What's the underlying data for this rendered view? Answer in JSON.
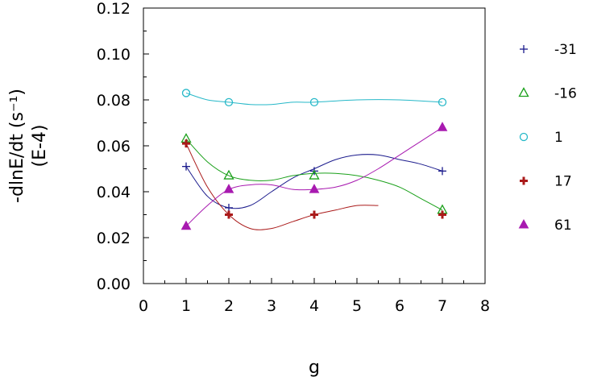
{
  "chart_data": {
    "type": "scatter",
    "title": "",
    "xlabel": "g",
    "ylabel": "-dlnE/dt  (s⁻¹)",
    "ylabel_sub": "(E-4)",
    "xlim": [
      0,
      8
    ],
    "ylim": [
      0,
      0.12
    ],
    "x_ticks": [
      "0",
      "1",
      "2",
      "3",
      "4",
      "5",
      "6",
      "7",
      "8"
    ],
    "y_ticks": [
      "0.00",
      "0.02",
      "0.04",
      "0.06",
      "0.08",
      "0.10",
      "0.12"
    ],
    "grid": false,
    "legend_position": "right",
    "series": [
      {
        "name": "-31",
        "marker": "plus",
        "color": "#1a1a8c",
        "points": [
          [
            1,
            0.051
          ],
          [
            2,
            0.033
          ],
          [
            4,
            0.049
          ],
          [
            7,
            0.049
          ]
        ],
        "curve": [
          [
            1,
            0.051
          ],
          [
            1.5,
            0.038
          ],
          [
            2,
            0.033
          ],
          [
            2.5,
            0.034
          ],
          [
            3,
            0.04
          ],
          [
            3.5,
            0.046
          ],
          [
            4,
            0.05
          ],
          [
            4.5,
            0.054
          ],
          [
            5,
            0.056
          ],
          [
            5.5,
            0.056
          ],
          [
            6,
            0.054
          ],
          [
            6.5,
            0.052
          ],
          [
            7,
            0.049
          ]
        ]
      },
      {
        "name": "-16",
        "marker": "triangle-open",
        "color": "#1aa01a",
        "points": [
          [
            1,
            0.063
          ],
          [
            2,
            0.047
          ],
          [
            4,
            0.047
          ],
          [
            7,
            0.032
          ]
        ],
        "curve": [
          [
            1,
            0.063
          ],
          [
            1.5,
            0.053
          ],
          [
            2,
            0.047
          ],
          [
            2.5,
            0.045
          ],
          [
            3,
            0.045
          ],
          [
            3.5,
            0.047
          ],
          [
            4,
            0.048
          ],
          [
            4.5,
            0.048
          ],
          [
            5,
            0.047
          ],
          [
            5.5,
            0.045
          ],
          [
            6,
            0.042
          ],
          [
            6.5,
            0.037
          ],
          [
            7,
            0.032
          ]
        ]
      },
      {
        "name": "1",
        "marker": "circle-open",
        "color": "#26b8c8",
        "points": [
          [
            1,
            0.083
          ],
          [
            2,
            0.079
          ],
          [
            4,
            0.079
          ],
          [
            7,
            0.079
          ]
        ],
        "curve": [
          [
            1,
            0.083
          ],
          [
            1.5,
            0.08
          ],
          [
            2,
            0.079
          ],
          [
            2.5,
            0.078
          ],
          [
            3,
            0.078
          ],
          [
            3.5,
            0.079
          ],
          [
            4,
            0.079
          ],
          [
            5,
            0.08
          ],
          [
            6,
            0.08
          ],
          [
            7,
            0.079
          ]
        ]
      },
      {
        "name": "17",
        "marker": "plus-bold",
        "color": "#aa1a1a",
        "points": [
          [
            1,
            0.061
          ],
          [
            2,
            0.03
          ],
          [
            4,
            0.03
          ],
          [
            7,
            0.03
          ]
        ],
        "curve": [
          [
            1,
            0.061
          ],
          [
            1.5,
            0.042
          ],
          [
            2,
            0.03
          ],
          [
            2.5,
            0.024
          ],
          [
            3,
            0.024
          ],
          [
            3.5,
            0.027
          ],
          [
            4,
            0.03
          ],
          [
            4.5,
            0.032
          ],
          [
            5,
            0.034
          ],
          [
            5.5,
            0.034
          ]
        ]
      },
      {
        "name": "61",
        "marker": "triangle-filled",
        "color": "#a81ab0",
        "points": [
          [
            1,
            0.025
          ],
          [
            2,
            0.041
          ],
          [
            4,
            0.041
          ],
          [
            7,
            0.068
          ]
        ],
        "curve": [
          [
            1,
            0.025
          ],
          [
            1.5,
            0.034
          ],
          [
            2,
            0.041
          ],
          [
            2.5,
            0.043
          ],
          [
            3,
            0.043
          ],
          [
            3.5,
            0.041
          ],
          [
            4,
            0.041
          ],
          [
            4.5,
            0.042
          ],
          [
            5,
            0.045
          ],
          [
            5.5,
            0.05
          ],
          [
            6,
            0.056
          ],
          [
            6.5,
            0.062
          ],
          [
            7,
            0.068
          ]
        ]
      }
    ]
  }
}
